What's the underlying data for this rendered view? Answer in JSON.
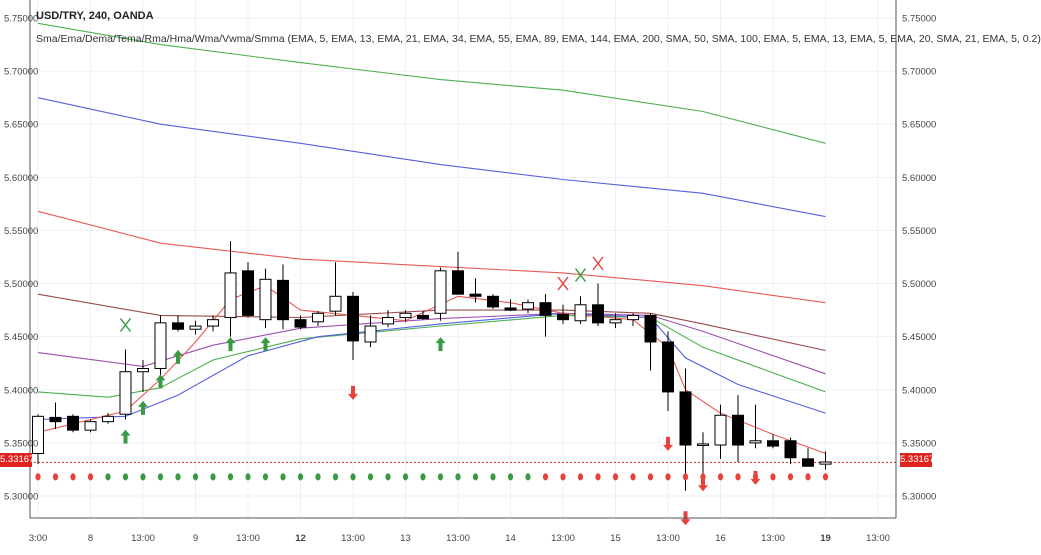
{
  "header": {
    "title": "USD/TRY, 240, OANDA",
    "subtitle": "Sma/Ema/Dema/Tema/Rma/Hma/Wma/Vwma/Smma (EMA, 5, EMA, 13, EMA, 21, EMA, 34, EMA, 55, EMA, 89, EMA, 144, EMA, 200, SMA, 50, SMA, 100, EMA, 5, EMA, 13, EMA, 5, EMA, 20, SMA, 21, EMA, 5, 0.2)"
  },
  "last_price_label": "5.33167",
  "colors": {
    "up_candle": "#ffffff",
    "down_candle": "#000000",
    "buy_arrow": "#3a9a43",
    "sell_arrow": "#e8413c",
    "last_price_line": "#e0221e",
    "green_dot": "#3a9a43",
    "red_dot": "#e8413c"
  },
  "chart_data": {
    "type": "candlestick",
    "symbol": "USD/TRY",
    "timeframe": "240",
    "source": "OANDA",
    "ylim": [
      5.28,
      5.76
    ],
    "y_ticks": [
      "5.75000",
      "5.70000",
      "5.65000",
      "5.60000",
      "5.55000",
      "5.50000",
      "5.45000",
      "5.40000",
      "5.35000",
      "5.30000"
    ],
    "x_ticks": [
      {
        "label": "3:00",
        "bar": 0
      },
      {
        "label": "8",
        "bar": 3
      },
      {
        "label": "13:00",
        "bar": 6
      },
      {
        "label": "9",
        "bar": 9
      },
      {
        "label": "13:00",
        "bar": 12
      },
      {
        "label": "12",
        "bar": 15
      },
      {
        "label": "13:00",
        "bar": 18
      },
      {
        "label": "13",
        "bar": 21
      },
      {
        "label": "13:00",
        "bar": 24
      },
      {
        "label": "14",
        "bar": 27
      },
      {
        "label": "13:00",
        "bar": 30
      },
      {
        "label": "15",
        "bar": 33
      },
      {
        "label": "13:00",
        "bar": 36
      },
      {
        "label": "16",
        "bar": 39
      },
      {
        "label": "13:00",
        "bar": 42
      },
      {
        "label": "19",
        "bar": 45
      },
      {
        "label": "13:00",
        "bar": 48
      }
    ],
    "candles": [
      {
        "o": 5.34,
        "h": 5.377,
        "l": 5.33,
        "c": 5.375
      },
      {
        "o": 5.374,
        "h": 5.388,
        "l": 5.363,
        "c": 5.37
      },
      {
        "o": 5.375,
        "h": 5.377,
        "l": 5.36,
        "c": 5.362
      },
      {
        "o": 5.362,
        "h": 5.372,
        "l": 5.36,
        "c": 5.37
      },
      {
        "o": 5.37,
        "h": 5.378,
        "l": 5.368,
        "c": 5.375
      },
      {
        "o": 5.377,
        "h": 5.438,
        "l": 5.372,
        "c": 5.417
      },
      {
        "o": 5.417,
        "h": 5.428,
        "l": 5.398,
        "c": 5.42
      },
      {
        "o": 5.42,
        "h": 5.47,
        "l": 5.412,
        "c": 5.463
      },
      {
        "o": 5.463,
        "h": 5.47,
        "l": 5.455,
        "c": 5.457
      },
      {
        "o": 5.457,
        "h": 5.465,
        "l": 5.452,
        "c": 5.46
      },
      {
        "o": 5.46,
        "h": 5.47,
        "l": 5.455,
        "c": 5.466
      },
      {
        "o": 5.468,
        "h": 5.54,
        "l": 5.45,
        "c": 5.51
      },
      {
        "o": 5.512,
        "h": 5.52,
        "l": 5.468,
        "c": 5.47
      },
      {
        "o": 5.466,
        "h": 5.514,
        "l": 5.458,
        "c": 5.504
      },
      {
        "o": 5.503,
        "h": 5.518,
        "l": 5.457,
        "c": 5.466
      },
      {
        "o": 5.466,
        "h": 5.47,
        "l": 5.457,
        "c": 5.459
      },
      {
        "o": 5.464,
        "h": 5.474,
        "l": 5.46,
        "c": 5.472
      },
      {
        "o": 5.474,
        "h": 5.52,
        "l": 5.47,
        "c": 5.488
      },
      {
        "o": 5.488,
        "h": 5.492,
        "l": 5.428,
        "c": 5.446
      },
      {
        "o": 5.445,
        "h": 5.47,
        "l": 5.44,
        "c": 5.46
      },
      {
        "o": 5.462,
        "h": 5.475,
        "l": 5.459,
        "c": 5.468
      },
      {
        "o": 5.468,
        "h": 5.475,
        "l": 5.464,
        "c": 5.472
      },
      {
        "o": 5.47,
        "h": 5.474,
        "l": 5.466,
        "c": 5.467
      },
      {
        "o": 5.472,
        "h": 5.515,
        "l": 5.465,
        "c": 5.512
      },
      {
        "o": 5.512,
        "h": 5.53,
        "l": 5.49,
        "c": 5.49
      },
      {
        "o": 5.49,
        "h": 5.505,
        "l": 5.482,
        "c": 5.488
      },
      {
        "o": 5.488,
        "h": 5.49,
        "l": 5.476,
        "c": 5.478
      },
      {
        "o": 5.477,
        "h": 5.485,
        "l": 5.474,
        "c": 5.475
      },
      {
        "o": 5.476,
        "h": 5.485,
        "l": 5.472,
        "c": 5.482
      },
      {
        "o": 5.482,
        "h": 5.49,
        "l": 5.45,
        "c": 5.47
      },
      {
        "o": 5.471,
        "h": 5.48,
        "l": 5.462,
        "c": 5.466
      },
      {
        "o": 5.465,
        "h": 5.488,
        "l": 5.462,
        "c": 5.48
      },
      {
        "o": 5.48,
        "h": 5.5,
        "l": 5.46,
        "c": 5.463
      },
      {
        "o": 5.463,
        "h": 5.472,
        "l": 5.458,
        "c": 5.466
      },
      {
        "o": 5.466,
        "h": 5.472,
        "l": 5.46,
        "c": 5.47
      },
      {
        "o": 5.47,
        "h": 5.472,
        "l": 5.418,
        "c": 5.445
      },
      {
        "o": 5.445,
        "h": 5.455,
        "l": 5.38,
        "c": 5.398
      },
      {
        "o": 5.398,
        "h": 5.42,
        "l": 5.305,
        "c": 5.348
      },
      {
        "o": 5.348,
        "h": 5.36,
        "l": 5.318,
        "c": 5.349
      },
      {
        "o": 5.348,
        "h": 5.386,
        "l": 5.335,
        "c": 5.376
      },
      {
        "o": 5.376,
        "h": 5.395,
        "l": 5.332,
        "c": 5.348
      },
      {
        "o": 5.35,
        "h": 5.386,
        "l": 5.345,
        "c": 5.352
      },
      {
        "o": 5.352,
        "h": 5.358,
        "l": 5.345,
        "c": 5.347
      },
      {
        "o": 5.352,
        "h": 5.355,
        "l": 5.33,
        "c": 5.336
      },
      {
        "o": 5.335,
        "h": 5.345,
        "l": 5.328,
        "c": 5.328
      },
      {
        "o": 5.33,
        "h": 5.342,
        "l": 5.325,
        "c": 5.332
      }
    ],
    "series": [
      {
        "color": "#4caf50",
        "points": [
          [
            0,
            5.745
          ],
          [
            7,
            5.725
          ],
          [
            15,
            5.708
          ],
          [
            23,
            5.692
          ],
          [
            30,
            5.682
          ],
          [
            38,
            5.662
          ],
          [
            45,
            5.632
          ]
        ]
      },
      {
        "color": "#5560e0",
        "points": [
          [
            0,
            5.675
          ],
          [
            7,
            5.65
          ],
          [
            15,
            5.632
          ],
          [
            23,
            5.612
          ],
          [
            30,
            5.598
          ],
          [
            38,
            5.585
          ],
          [
            45,
            5.563
          ]
        ]
      },
      {
        "color": "#e85a55",
        "points": [
          [
            0,
            5.568
          ],
          [
            7,
            5.538
          ],
          [
            15,
            5.523
          ],
          [
            23,
            5.516
          ],
          [
            30,
            5.51
          ],
          [
            38,
            5.498
          ],
          [
            45,
            5.482
          ]
        ]
      },
      {
        "color": "#9c4a4a",
        "points": [
          [
            0,
            5.49
          ],
          [
            7,
            5.47
          ],
          [
            15,
            5.468
          ],
          [
            23,
            5.475
          ],
          [
            30,
            5.475
          ],
          [
            35,
            5.472
          ],
          [
            38,
            5.462
          ],
          [
            45,
            5.437
          ]
        ]
      },
      {
        "color": "#9c4fb0",
        "points": [
          [
            0,
            5.435
          ],
          [
            6,
            5.422
          ],
          [
            10,
            5.442
          ],
          [
            15,
            5.458
          ],
          [
            23,
            5.467
          ],
          [
            30,
            5.472
          ],
          [
            35,
            5.47
          ],
          [
            38,
            5.455
          ],
          [
            45,
            5.415
          ]
        ]
      },
      {
        "color": "#4caf50",
        "points": [
          [
            0,
            5.398
          ],
          [
            4,
            5.393
          ],
          [
            7,
            5.402
          ],
          [
            10,
            5.428
          ],
          [
            15,
            5.448
          ],
          [
            23,
            5.46
          ],
          [
            30,
            5.47
          ],
          [
            35,
            5.468
          ],
          [
            38,
            5.44
          ],
          [
            45,
            5.398
          ]
        ]
      },
      {
        "color": "#5560e0",
        "points": [
          [
            0,
            5.372
          ],
          [
            5,
            5.375
          ],
          [
            8,
            5.395
          ],
          [
            12,
            5.432
          ],
          [
            16,
            5.45
          ],
          [
            23,
            5.462
          ],
          [
            30,
            5.472
          ],
          [
            35,
            5.468
          ],
          [
            37,
            5.43
          ],
          [
            40,
            5.405
          ],
          [
            45,
            5.378
          ]
        ]
      },
      {
        "color": "#e85a55",
        "points": [
          [
            0,
            5.36
          ],
          [
            5,
            5.38
          ],
          [
            7,
            5.41
          ],
          [
            9,
            5.445
          ],
          [
            11,
            5.485
          ],
          [
            13,
            5.498
          ],
          [
            15,
            5.475
          ],
          [
            18,
            5.47
          ],
          [
            21,
            5.465
          ],
          [
            24,
            5.488
          ],
          [
            27,
            5.482
          ],
          [
            30,
            5.472
          ],
          [
            34,
            5.466
          ],
          [
            36,
            5.44
          ],
          [
            37,
            5.4
          ],
          [
            39,
            5.378
          ],
          [
            42,
            5.358
          ],
          [
            45,
            5.34
          ]
        ]
      }
    ],
    "buy_arrows": [
      [
        5,
        5.355
      ],
      [
        6,
        5.382
      ],
      [
        7,
        5.407
      ],
      [
        8,
        5.43
      ],
      [
        11,
        5.442
      ],
      [
        13,
        5.442
      ],
      [
        23,
        5.442
      ]
    ],
    "sell_arrows": [
      [
        18,
        5.398
      ],
      [
        36,
        5.35
      ],
      [
        38,
        5.312
      ],
      [
        37,
        5.28
      ],
      [
        41,
        5.318
      ]
    ],
    "cross_markers": [
      {
        "bar": 5,
        "y": 5.461,
        "color": "#3a9a43"
      },
      {
        "bar": 30,
        "y": 5.5,
        "color": "#e8413c"
      },
      {
        "bar": 31,
        "y": 5.508,
        "color": "#3a9a43"
      },
      {
        "bar": 32,
        "y": 5.519,
        "color": "#e8413c"
      }
    ],
    "dot_row_y": 5.318,
    "dot_colors": [
      "r",
      "r",
      "r",
      "r",
      "g",
      "g",
      "g",
      "g",
      "g",
      "g",
      "g",
      "g",
      "g",
      "g",
      "g",
      "g",
      "g",
      "g",
      "g",
      "g",
      "g",
      "g",
      "g",
      "g",
      "g",
      "g",
      "g",
      "g",
      "g",
      "r",
      "r",
      "r",
      "r",
      "r",
      "r",
      "r",
      "r",
      "r",
      "r",
      "r",
      "r",
      "r",
      "r",
      "r",
      "r",
      "r"
    ],
    "last_price": 5.33167,
    "grid": true
  }
}
